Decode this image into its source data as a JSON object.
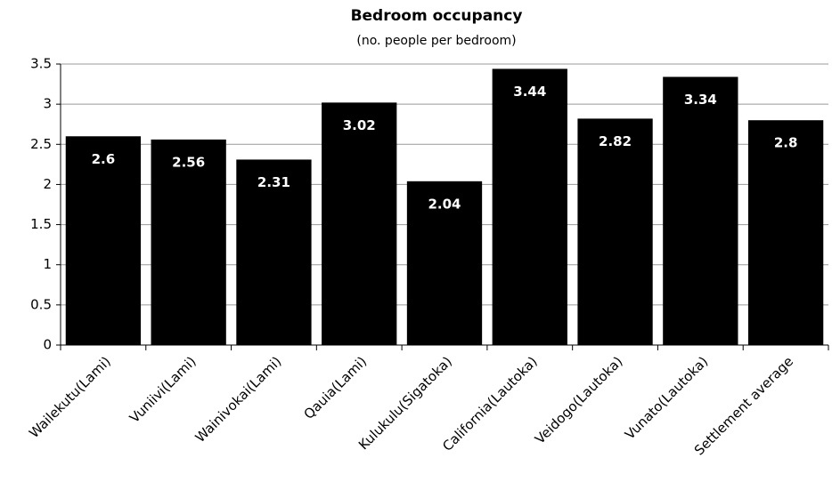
{
  "chart_data": {
    "type": "bar",
    "title": "Bedroom occupancy",
    "subtitle": "(no. people per bedroom)",
    "categories": [
      "Wailekutu(Lami)",
      "Vuniivi(Lami)",
      "Wainivokai(Lami)",
      "Qauia(Lami)",
      "Kulukulu(Sigatoka)",
      "California(Lautoka)",
      "Veidogo(Lautoka)",
      "Vunato(Lautoka)",
      "Settlement average"
    ],
    "values": [
      2.6,
      2.56,
      2.31,
      3.02,
      2.04,
      3.44,
      2.82,
      3.34,
      2.8
    ],
    "color": "#000000",
    "ylim": [
      0,
      3.5
    ],
    "yticks": [
      0,
      0.5,
      1,
      1.5,
      2,
      2.5,
      3,
      3.5
    ],
    "grid": true
  }
}
